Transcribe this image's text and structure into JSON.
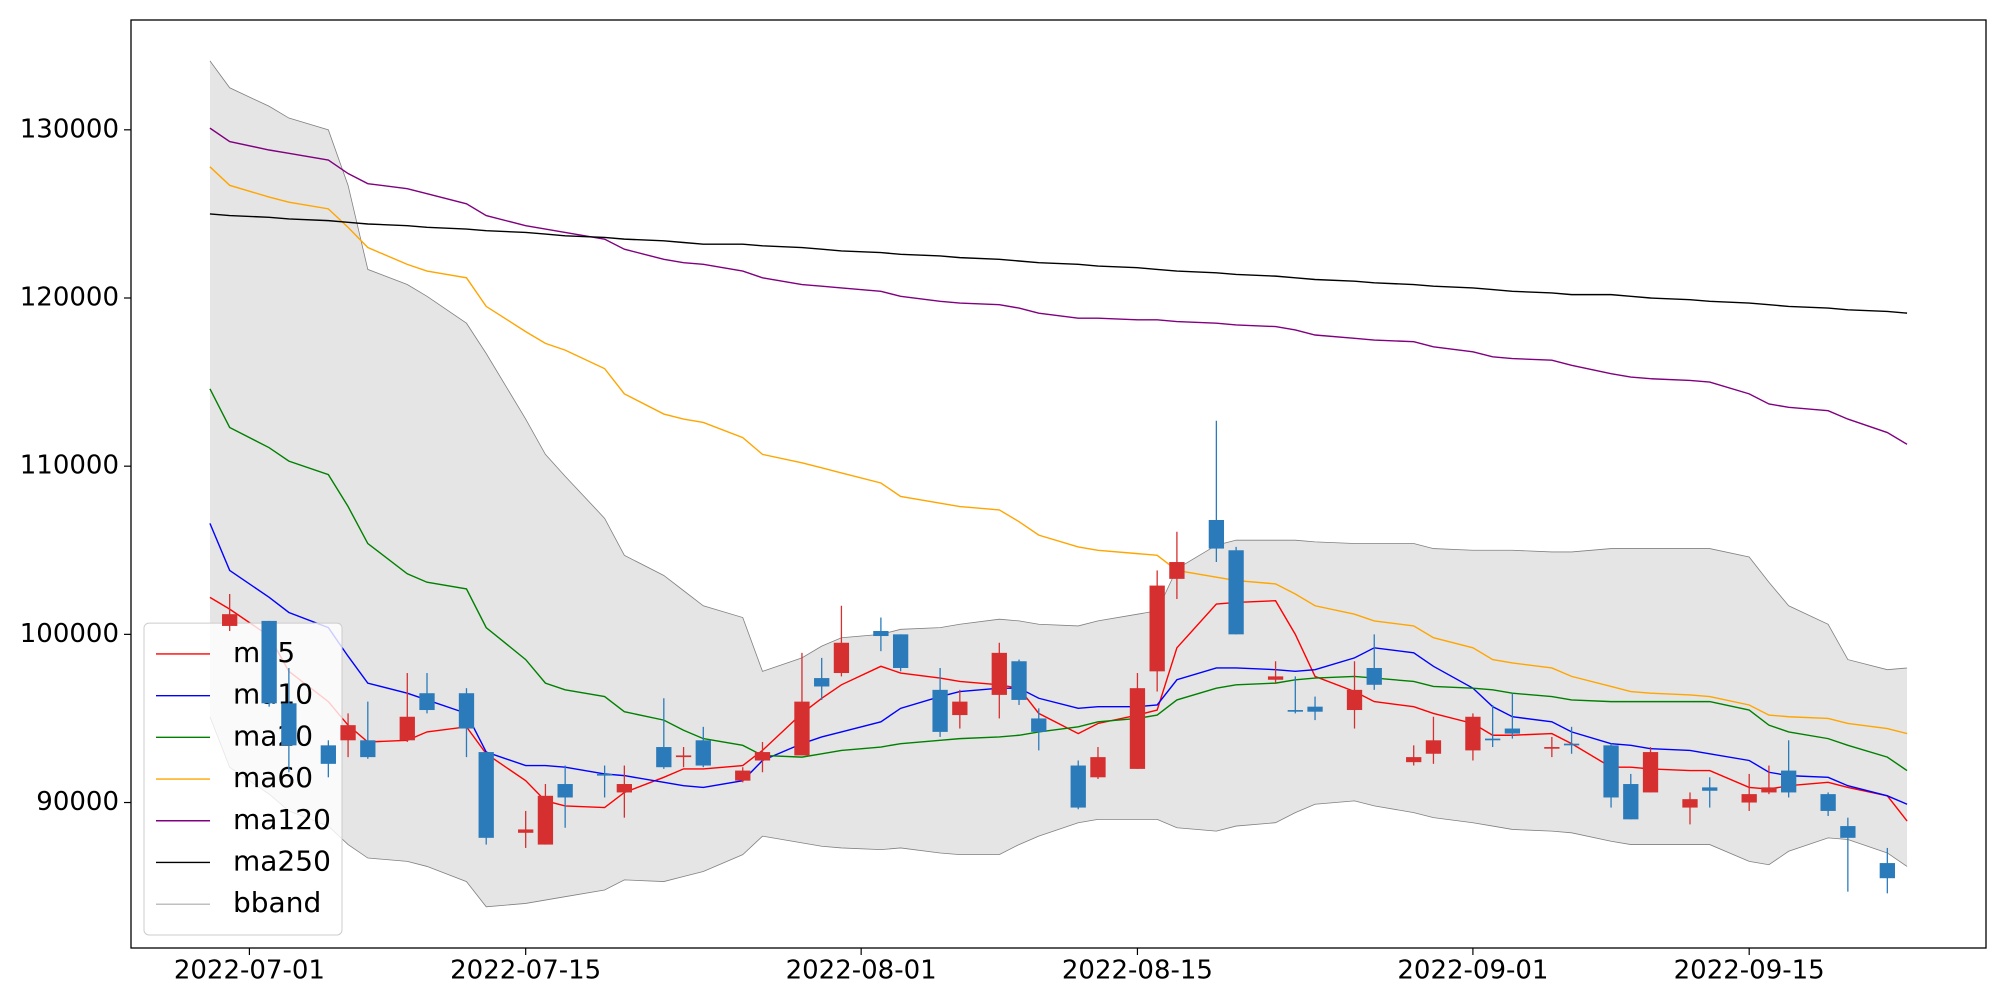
{
  "chart_data": {
    "type": "candlestick",
    "x": [
      "2022-06-29",
      "2022-06-30",
      "2022-07-02",
      "2022-07-03",
      "2022-07-05",
      "2022-07-06",
      "2022-07-07",
      "2022-07-09",
      "2022-07-10",
      "2022-07-12",
      "2022-07-13",
      "2022-07-15",
      "2022-07-16",
      "2022-07-17",
      "2022-07-19",
      "2022-07-20",
      "2022-07-22",
      "2022-07-23",
      "2022-07-24",
      "2022-07-26",
      "2022-07-27",
      "2022-07-29",
      "2022-07-30",
      "2022-07-31",
      "2022-08-02",
      "2022-08-03",
      "2022-08-05",
      "2022-08-06",
      "2022-08-08",
      "2022-08-09",
      "2022-08-10",
      "2022-08-12",
      "2022-08-13",
      "2022-08-15",
      "2022-08-16",
      "2022-08-17",
      "2022-08-19",
      "2022-08-20",
      "2022-08-22",
      "2022-08-23",
      "2022-08-24",
      "2022-08-26",
      "2022-08-27",
      "2022-08-29",
      "2022-08-30",
      "2022-09-01",
      "2022-09-02",
      "2022-09-03",
      "2022-09-05",
      "2022-09-06",
      "2022-09-08",
      "2022-09-09",
      "2022-09-10",
      "2022-09-12",
      "2022-09-13",
      "2022-09-15",
      "2022-09-16",
      "2022-09-17",
      "2022-09-19",
      "2022-09-20",
      "2022-09-22",
      "2022-09-23"
    ],
    "open": [
      null,
      100500,
      100800,
      95900,
      93400,
      93700,
      93700,
      93700,
      96500,
      96500,
      93000,
      88200,
      87500,
      91100,
      91700,
      90600,
      93300,
      92700,
      93700,
      91300,
      92500,
      92800,
      97400,
      97700,
      100200,
      100000,
      96700,
      95200,
      96400,
      98400,
      95000,
      92200,
      91500,
      92000,
      97800,
      103300,
      106800,
      105000,
      97300,
      95500,
      95700,
      95500,
      98000,
      92400,
      92900,
      93100,
      93800,
      94400,
      93200,
      93500,
      93400,
      91100,
      90600,
      89700,
      90900,
      90000,
      90600,
      91900,
      90500,
      88600,
      86400,
      null
    ],
    "high": [
      null,
      102400,
      100800,
      98000,
      93700,
      95300,
      96000,
      97700,
      97700,
      96800,
      93000,
      89500,
      91100,
      92200,
      92200,
      92200,
      96200,
      93300,
      94500,
      92100,
      93600,
      98900,
      98600,
      101700,
      101000,
      100000,
      98000,
      96700,
      99500,
      98500,
      95600,
      92500,
      93300,
      97700,
      103800,
      106100,
      112700,
      105200,
      98400,
      97500,
      96300,
      98400,
      100000,
      93400,
      95100,
      95300,
      95800,
      96500,
      93900,
      94500,
      93500,
      91700,
      93300,
      90600,
      91500,
      91700,
      92200,
      93700,
      90600,
      89100,
      87300,
      null
    ],
    "low": [
      null,
      100200,
      95700,
      91800,
      91500,
      92700,
      92600,
      93600,
      95300,
      92700,
      87500,
      87300,
      87500,
      88500,
      90300,
      89100,
      92000,
      92100,
      92100,
      91200,
      91800,
      92800,
      96100,
      97500,
      99000,
      97800,
      93900,
      94400,
      95000,
      95800,
      93100,
      89600,
      91400,
      92000,
      96600,
      102100,
      104300,
      100000,
      97100,
      95300,
      94900,
      94400,
      96700,
      92200,
      92300,
      92500,
      93300,
      93800,
      92700,
      92900,
      89700,
      89000,
      90600,
      88700,
      89700,
      89500,
      90500,
      90300,
      89200,
      84700,
      84600,
      null
    ],
    "close": [
      null,
      101200,
      95900,
      93400,
      92300,
      94600,
      92700,
      95100,
      95500,
      94400,
      87900,
      88400,
      90400,
      90300,
      91600,
      91100,
      92100,
      92800,
      92200,
      91900,
      93000,
      96000,
      96900,
      99500,
      99900,
      98000,
      94200,
      96000,
      98900,
      96100,
      94200,
      89700,
      92700,
      96800,
      102900,
      104300,
      105100,
      100000,
      97500,
      95400,
      95400,
      96700,
      97000,
      92700,
      93700,
      95100,
      93700,
      94100,
      93300,
      93400,
      90300,
      89000,
      93000,
      90200,
      90700,
      90500,
      90900,
      90600,
      89500,
      87900,
      85500,
      null
    ],
    "up_color": "#d62f2f",
    "down_color": "#2b7bba",
    "series": [
      {
        "name": "ma5",
        "color": "#ff0000",
        "values": [
          102200,
          101500,
          99900,
          97800,
          96000,
          94600,
          93600,
          93700,
          94200,
          94500,
          92900,
          91300,
          90100,
          89800,
          89700,
          90600,
          91500,
          92000,
          92000,
          92200,
          93100,
          95300,
          96200,
          97000,
          98100,
          97700,
          97400,
          97200,
          97000,
          96800,
          95300,
          94100,
          94700,
          95200,
          95500,
          99200,
          101800,
          101900,
          102000,
          100000,
          97500,
          96600,
          96000,
          95700,
          95300,
          94700,
          94000,
          94000,
          94100,
          93500,
          92100,
          92100,
          92000,
          91900,
          91900,
          90900,
          90800,
          91000,
          91200,
          90900,
          90400,
          88900
        ]
      },
      {
        "name": "ma10",
        "color": "#0000ff",
        "values": [
          106600,
          103800,
          102200,
          101300,
          100400,
          98700,
          97100,
          96500,
          96100,
          95300,
          93000,
          92200,
          92200,
          92100,
          91700,
          91600,
          91200,
          91000,
          90900,
          91300,
          92500,
          93500,
          93900,
          94200,
          94800,
          95600,
          96300,
          96600,
          96800,
          96800,
          96200,
          95600,
          95700,
          95700,
          95800,
          97300,
          98000,
          98000,
          97900,
          97800,
          97900,
          98600,
          99200,
          98900,
          98100,
          96800,
          95700,
          95100,
          94800,
          94200,
          93500,
          93400,
          93200,
          93100,
          92900,
          92500,
          91800,
          91600,
          91500,
          91000,
          90400,
          89900
        ]
      },
      {
        "name": "ma20",
        "color": "#008000",
        "values": [
          114600,
          112300,
          111100,
          110300,
          109500,
          107600,
          105400,
          103600,
          103100,
          102700,
          100400,
          98500,
          97100,
          96700,
          96300,
          95400,
          94900,
          94300,
          93800,
          93400,
          92800,
          92700,
          92900,
          93100,
          93300,
          93500,
          93700,
          93800,
          93900,
          94000,
          94200,
          94500,
          94800,
          95000,
          95200,
          96100,
          96800,
          97000,
          97100,
          97300,
          97400,
          97500,
          97400,
          97200,
          96900,
          96800,
          96700,
          96500,
          96300,
          96100,
          96000,
          96000,
          96000,
          96000,
          96000,
          95500,
          94600,
          94200,
          93800,
          93400,
          92700,
          91900
        ]
      },
      {
        "name": "ma60",
        "color": "#ffa500",
        "values": [
          127800,
          126700,
          126000,
          125700,
          125300,
          124200,
          123000,
          122000,
          121600,
          121200,
          119500,
          118000,
          117300,
          116900,
          115800,
          114300,
          113100,
          112800,
          112600,
          111700,
          110700,
          110200,
          109900,
          109600,
          109000,
          108200,
          107800,
          107600,
          107400,
          106700,
          105900,
          105200,
          105000,
          104800,
          104700,
          103800,
          103400,
          103200,
          103000,
          102400,
          101700,
          101200,
          100800,
          100500,
          99800,
          99200,
          98500,
          98300,
          98000,
          97500,
          96900,
          96600,
          96500,
          96400,
          96300,
          95800,
          95200,
          95100,
          95000,
          94700,
          94400,
          94100
        ]
      },
      {
        "name": "ma120",
        "color": "#800080",
        "values": [
          130100,
          129300,
          128800,
          128600,
          128200,
          127400,
          126800,
          126500,
          126200,
          125600,
          124900,
          124300,
          124100,
          123900,
          123500,
          122900,
          122300,
          122100,
          122000,
          121600,
          121200,
          120800,
          120700,
          120600,
          120400,
          120100,
          119800,
          119700,
          119600,
          119400,
          119100,
          118800,
          118800,
          118700,
          118700,
          118600,
          118500,
          118400,
          118300,
          118100,
          117800,
          117600,
          117500,
          117400,
          117100,
          116800,
          116500,
          116400,
          116300,
          116000,
          115500,
          115300,
          115200,
          115100,
          115000,
          114300,
          113700,
          113500,
          113300,
          112800,
          112000,
          111300
        ]
      },
      {
        "name": "ma250",
        "color": "#000000",
        "values": [
          125000,
          124900,
          124800,
          124700,
          124600,
          124500,
          124400,
          124300,
          124200,
          124100,
          124000,
          123900,
          123800,
          123700,
          123600,
          123500,
          123400,
          123300,
          123200,
          123200,
          123100,
          123000,
          122900,
          122800,
          122700,
          122600,
          122500,
          122400,
          122300,
          122200,
          122100,
          122000,
          121900,
          121800,
          121700,
          121600,
          121500,
          121400,
          121300,
          121200,
          121100,
          121000,
          120900,
          120800,
          120700,
          120600,
          120500,
          120400,
          120300,
          120200,
          120200,
          120100,
          120000,
          119900,
          119800,
          119700,
          119600,
          119500,
          119400,
          119300,
          119200,
          119100
        ]
      }
    ],
    "bband": {
      "name": "bband",
      "color": "#808080",
      "fill": "#e5e5e5",
      "upper": [
        134100,
        132500,
        131400,
        130700,
        130000,
        126700,
        121700,
        120800,
        120100,
        118500,
        116700,
        112800,
        110700,
        109400,
        106900,
        104700,
        103500,
        102600,
        101700,
        101000,
        97800,
        98600,
        99300,
        99800,
        100000,
        100300,
        100400,
        100600,
        100900,
        100800,
        100600,
        100500,
        100800,
        101200,
        101400,
        103900,
        105300,
        105600,
        105600,
        105600,
        105500,
        105400,
        105400,
        105400,
        105100,
        105000,
        105000,
        105000,
        104900,
        104900,
        105100,
        105100,
        105100,
        105100,
        105100,
        104600,
        103100,
        101700,
        100600,
        98500,
        97900,
        98000
      ],
      "lower": [
        95100,
        92100,
        90500,
        89500,
        88600,
        87500,
        86700,
        86500,
        86200,
        85300,
        83800,
        84000,
        84200,
        84400,
        84800,
        85400,
        85300,
        85600,
        85900,
        86900,
        88000,
        87600,
        87400,
        87300,
        87200,
        87300,
        87000,
        86900,
        86900,
        87500,
        88000,
        88800,
        89000,
        89000,
        89000,
        88500,
        88300,
        88600,
        88800,
        89400,
        89900,
        90100,
        89800,
        89400,
        89100,
        88800,
        88600,
        88400,
        88300,
        88200,
        87700,
        87500,
        87500,
        87500,
        87500,
        86500,
        86300,
        87100,
        87900,
        87800,
        87000,
        86200
      ]
    },
    "xlim": [
      "2022-06-25",
      "2022-09-27"
    ],
    "xticks": [
      "2022-07-01",
      "2022-07-15",
      "2022-08-01",
      "2022-08-15",
      "2022-09-01",
      "2022-09-15"
    ],
    "ylim": [
      81350,
      136530
    ],
    "yticks": [
      90000,
      100000,
      110000,
      120000,
      130000
    ],
    "legend": "lower left"
  }
}
